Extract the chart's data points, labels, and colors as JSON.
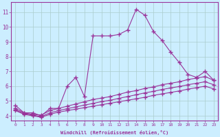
{
  "line1_x": [
    0,
    1,
    2,
    3,
    4,
    5,
    6,
    7,
    8,
    9,
    10,
    11,
    12,
    13,
    14,
    15,
    16,
    17,
    18,
    19,
    20,
    21,
    22,
    23
  ],
  "line1_y": [
    4.7,
    4.2,
    4.2,
    4.0,
    4.5,
    4.5,
    6.0,
    6.6,
    5.3,
    9.4,
    9.4,
    9.4,
    9.5,
    9.8,
    11.2,
    10.8,
    9.7,
    9.1,
    8.3,
    7.6,
    6.8,
    6.6,
    7.0,
    6.4
  ],
  "line2_x": [
    0,
    1,
    2,
    3,
    4,
    5,
    6,
    7,
    8,
    9,
    10,
    11,
    12,
    13,
    14,
    15,
    16,
    17,
    18,
    19,
    20,
    21,
    22,
    23
  ],
  "line2_y": [
    4.5,
    4.2,
    4.1,
    4.05,
    4.35,
    4.5,
    4.65,
    4.8,
    4.95,
    5.1,
    5.2,
    5.3,
    5.45,
    5.6,
    5.7,
    5.85,
    5.95,
    6.1,
    6.2,
    6.3,
    6.45,
    6.55,
    6.65,
    6.4
  ],
  "line3_x": [
    0,
    1,
    2,
    3,
    4,
    5,
    6,
    7,
    8,
    9,
    10,
    11,
    12,
    13,
    14,
    15,
    16,
    17,
    18,
    19,
    20,
    21,
    22,
    23
  ],
  "line3_y": [
    4.4,
    4.15,
    4.05,
    3.95,
    4.2,
    4.35,
    4.48,
    4.6,
    4.72,
    4.84,
    4.96,
    5.05,
    5.18,
    5.3,
    5.42,
    5.55,
    5.65,
    5.78,
    5.88,
    5.98,
    6.1,
    6.2,
    6.3,
    6.1
  ],
  "line4_x": [
    0,
    1,
    2,
    3,
    4,
    5,
    6,
    7,
    8,
    9,
    10,
    11,
    12,
    13,
    14,
    15,
    16,
    17,
    18,
    19,
    20,
    21,
    22,
    23
  ],
  "line4_y": [
    4.35,
    4.1,
    4.0,
    3.9,
    4.1,
    4.25,
    4.35,
    4.45,
    4.55,
    4.65,
    4.75,
    4.85,
    4.95,
    5.05,
    5.15,
    5.25,
    5.38,
    5.48,
    5.58,
    5.68,
    5.8,
    5.9,
    6.0,
    5.82
  ],
  "color": "#993399",
  "bg_color": "#cceeff",
  "grid_color": "#aacccc",
  "xlabel": "Windchill (Refroidissement éolien,°C)",
  "xlim": [
    -0.5,
    23.5
  ],
  "ylim": [
    3.7,
    11.7
  ],
  "yticks": [
    4,
    5,
    6,
    7,
    8,
    9,
    10,
    11
  ],
  "xticks": [
    0,
    1,
    2,
    3,
    4,
    5,
    6,
    7,
    8,
    9,
    10,
    11,
    12,
    13,
    14,
    15,
    16,
    17,
    18,
    19,
    20,
    21,
    22,
    23
  ],
  "marker": "+",
  "markersize": 4,
  "linewidth": 0.8
}
